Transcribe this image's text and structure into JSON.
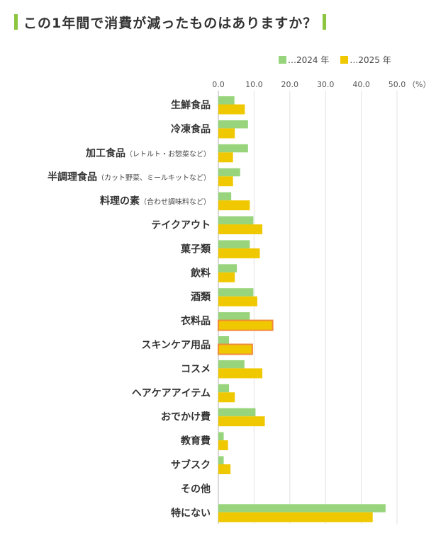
{
  "title": "この1年間で消費が減ったものはありますか？",
  "chart_data": {
    "type": "bar",
    "orientation": "horizontal",
    "title": "この1年間で消費が減ったものはありますか？",
    "categories": [
      "生鮮食品",
      "冷凍食品",
      "加工食品",
      "半調理食品",
      "料理の素",
      "テイクアウト",
      "菓子類",
      "飲料",
      "酒類",
      "衣料品",
      "スキンケア用品",
      "コスメ",
      "ヘアケアアイテム",
      "おでかけ費",
      "教育費",
      "サブスク",
      "その他",
      "特にない"
    ],
    "category_notes": [
      "",
      "",
      "（レトルト・お惣菜など）",
      "（カット野菜、ミールキットなど）",
      "（合わせ調味料など）",
      "",
      "",
      "",
      "",
      "",
      "",
      "",
      "",
      "",
      "",
      "",
      "",
      ""
    ],
    "series": [
      {
        "name": "…2024 年",
        "color": "#98d47c",
        "values": [
          4.5,
          8.3,
          8.3,
          6.1,
          3.6,
          9.8,
          8.8,
          5.2,
          9.8,
          8.8,
          3.0,
          7.3,
          3.0,
          10.4,
          1.5,
          1.5,
          0,
          46.8
        ]
      },
      {
        "name": "…2025 年",
        "color": "#f0c800",
        "values": [
          7.4,
          4.6,
          4.1,
          4.1,
          8.8,
          12.3,
          11.6,
          4.6,
          10.9,
          15.2,
          9.5,
          12.3,
          4.6,
          13.0,
          2.7,
          3.4,
          0,
          43.2
        ]
      }
    ],
    "highlighted": [
      {
        "series": 1,
        "category": "衣料品"
      },
      {
        "series": 1,
        "category": "スキンケア用品"
      }
    ],
    "highlight_color": "#f08a3c",
    "xlim": [
      0,
      50
    ],
    "xticks": [
      "0.0",
      "10.0",
      "20.0",
      "30.0",
      "40.0",
      "50.0"
    ],
    "xunit": "（%）",
    "grid": true,
    "legend": "top-right"
  }
}
